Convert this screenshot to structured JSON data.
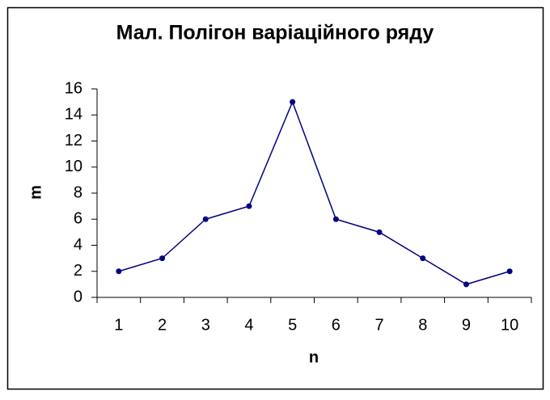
{
  "chart_data": {
    "type": "line",
    "title": "Мал. Полігон варіаційного ряду",
    "x_label": "n",
    "y_label": "m",
    "categories": [
      "1",
      "2",
      "3",
      "4",
      "5",
      "6",
      "7",
      "8",
      "9",
      "10"
    ],
    "series": [
      {
        "name": "m",
        "color": "#000080",
        "values": [
          2,
          3,
          6,
          7,
          15,
          6,
          5,
          3,
          1,
          2
        ]
      }
    ],
    "ylim": [
      0,
      16
    ],
    "yticks": [
      0,
      2,
      4,
      6,
      8,
      10,
      12,
      14,
      16
    ],
    "grid": false,
    "legend": false
  }
}
